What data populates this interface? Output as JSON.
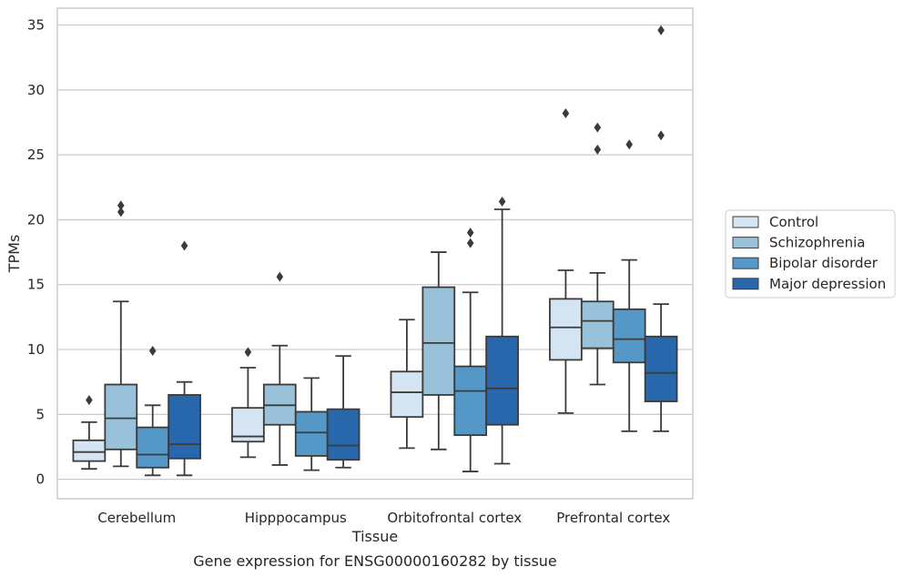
{
  "chart_data": {
    "type": "box",
    "xlabel": "Tissue",
    "ylabel": "TPMs",
    "caption": "Gene expression for ENSG00000160282 by tissue",
    "ylim": [
      -1.5,
      36.3
    ],
    "yticks": [
      0,
      5,
      10,
      15,
      20,
      25,
      30,
      35
    ],
    "grid": "horizontal",
    "legend_position": "right",
    "categories": [
      "Cerebellum",
      "Hipppocampus",
      "Orbitofrontal cortex",
      "Prefrontal cortex"
    ],
    "series": [
      {
        "name": "Control",
        "color": "#d5e4f2",
        "boxes": [
          {
            "whislo": 0.8,
            "q1": 1.4,
            "med": 2.1,
            "q3": 3.0,
            "whishi": 4.4,
            "fliers": [
              6.1
            ]
          },
          {
            "whislo": 1.7,
            "q1": 2.9,
            "med": 3.3,
            "q3": 5.5,
            "whishi": 8.6,
            "fliers": [
              9.8
            ]
          },
          {
            "whislo": 2.4,
            "q1": 4.8,
            "med": 6.7,
            "q3": 8.3,
            "whishi": 12.3,
            "fliers": []
          },
          {
            "whislo": 5.1,
            "q1": 9.2,
            "med": 11.7,
            "q3": 13.9,
            "whishi": 16.1,
            "fliers": [
              28.2
            ]
          }
        ]
      },
      {
        "name": "Schizophrenia",
        "color": "#99c2da",
        "boxes": [
          {
            "whislo": 1.0,
            "q1": 2.3,
            "med": 4.7,
            "q3": 7.3,
            "whishi": 13.7,
            "fliers": [
              20.6,
              21.1
            ]
          },
          {
            "whislo": 1.1,
            "q1": 4.2,
            "med": 5.7,
            "q3": 7.3,
            "whishi": 10.3,
            "fliers": [
              15.6
            ]
          },
          {
            "whislo": 2.3,
            "q1": 6.5,
            "med": 10.5,
            "q3": 14.8,
            "whishi": 17.5,
            "fliers": []
          },
          {
            "whislo": 7.3,
            "q1": 10.1,
            "med": 12.2,
            "q3": 13.7,
            "whishi": 15.9,
            "fliers": [
              25.4,
              27.1
            ]
          }
        ]
      },
      {
        "name": "Bipolar disorder",
        "color": "#5597c6",
        "boxes": [
          {
            "whislo": 0.3,
            "q1": 0.9,
            "med": 1.9,
            "q3": 4.0,
            "whishi": 5.7,
            "fliers": [
              9.9
            ]
          },
          {
            "whislo": 0.7,
            "q1": 1.8,
            "med": 3.6,
            "q3": 5.2,
            "whishi": 7.8,
            "fliers": []
          },
          {
            "whislo": 0.6,
            "q1": 3.4,
            "med": 6.8,
            "q3": 8.7,
            "whishi": 14.4,
            "fliers": [
              18.2,
              19.0
            ]
          },
          {
            "whislo": 3.7,
            "q1": 9.0,
            "med": 10.8,
            "q3": 13.1,
            "whishi": 16.9,
            "fliers": [
              25.8
            ]
          }
        ]
      },
      {
        "name": "Major depression",
        "color": "#2867ab",
        "boxes": [
          {
            "whislo": 0.3,
            "q1": 1.6,
            "med": 2.7,
            "q3": 6.5,
            "whishi": 7.5,
            "fliers": [
              18.0
            ]
          },
          {
            "whislo": 0.9,
            "q1": 1.5,
            "med": 2.6,
            "q3": 5.4,
            "whishi": 9.5,
            "fliers": []
          },
          {
            "whislo": 1.2,
            "q1": 4.2,
            "med": 7.0,
            "q3": 11.0,
            "whishi": 20.8,
            "fliers": [
              21.4
            ]
          },
          {
            "whislo": 3.7,
            "q1": 6.0,
            "med": 8.2,
            "q3": 11.0,
            "whishi": 13.5,
            "fliers": [
              26.5,
              34.6
            ]
          }
        ]
      }
    ]
  }
}
